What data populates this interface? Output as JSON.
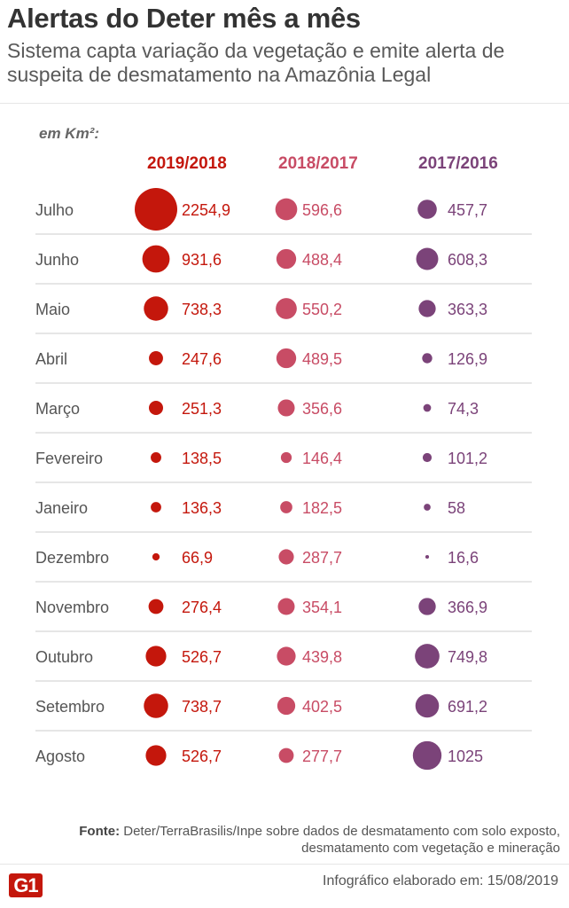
{
  "header": {
    "title": "Alertas do Deter mês a mês",
    "subtitle": "Sistema capta variação da vegetação e emite alerta de suspeita de desmatamento na Amazônia Legal"
  },
  "unit_label": "em Km²:",
  "colors": {
    "s2019": "#c4170c",
    "s2018": "#c84c65",
    "s2017": "#7b4379",
    "divider": "#cccccc",
    "row_label": "#555555"
  },
  "chart_data": {
    "type": "table",
    "unit": "km²",
    "categories": [
      "Julho",
      "Junho",
      "Maio",
      "Abril",
      "Março",
      "Fevereiro",
      "Janeiro",
      "Dezembro",
      "Novembro",
      "Outubro",
      "Setembro",
      "Agosto"
    ],
    "series": [
      {
        "name": "2019/2018",
        "values": [
          2254.9,
          931.6,
          738.3,
          247.6,
          251.3,
          138.5,
          136.3,
          66.9,
          276.4,
          526.7,
          738.7,
          526.7
        ],
        "labels": [
          "2254,9",
          "931,6",
          "738,3",
          "247,6",
          "251,3",
          "138,5",
          "136,3",
          "66,9",
          "276,4",
          "526,7",
          "738,7",
          "526,7"
        ]
      },
      {
        "name": "2018/2017",
        "values": [
          596.6,
          488.4,
          550.2,
          489.5,
          356.6,
          146.4,
          182.5,
          287.7,
          354.1,
          439.8,
          402.5,
          277.7
        ],
        "labels": [
          "596,6",
          "488,4",
          "550,2",
          "489,5",
          "356,6",
          "146,4",
          "182,5",
          "287,7",
          "354,1",
          "439,8",
          "402,5",
          "277,7"
        ]
      },
      {
        "name": "2017/2016",
        "values": [
          457.7,
          608.3,
          363.3,
          126.9,
          74.3,
          101.2,
          58,
          16.6,
          366.9,
          749.8,
          691.2,
          1025
        ],
        "labels": [
          "457,7",
          "608,3",
          "363,3",
          "126,9",
          "74,3",
          "101,2",
          "58",
          "16,6",
          "366,9",
          "749,8",
          "691,2",
          "1025"
        ]
      }
    ]
  },
  "footer": {
    "source_label": "Fonte:",
    "source_text": " Deter/TerraBrasilis/Inpe sobre dados de desmatamento com solo exposto, desmatamento com vegetação e mineração",
    "logo": "G1",
    "credit": "Infográfico elaborado em: 15/08/2019"
  }
}
